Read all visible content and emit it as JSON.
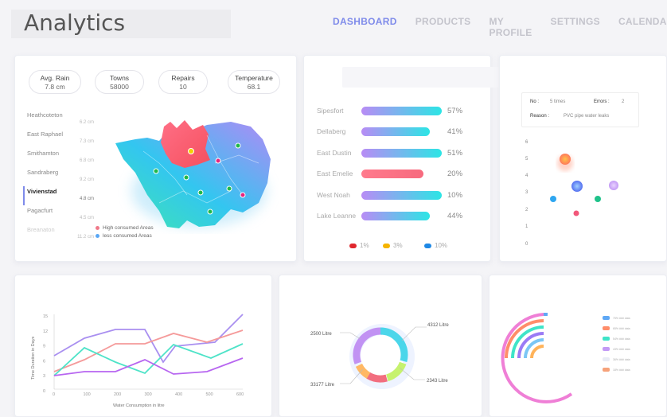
{
  "header": {
    "title": "Analytics",
    "nav": [
      {
        "label": "DASHBOARD",
        "active": true
      },
      {
        "label": "PRODUCTS",
        "active": false
      },
      {
        "label": "MY PROFILE",
        "active": false
      },
      {
        "label": "SETTINGS",
        "active": false
      },
      {
        "label": "CALENDAR",
        "active": false
      }
    ]
  },
  "stats": [
    {
      "label": "Avg. Rain",
      "value": "7.8 cm"
    },
    {
      "label": "Towns",
      "value": "58000"
    },
    {
      "label": "Repairs",
      "value": "10"
    },
    {
      "label": "Temperature",
      "value": "68.1"
    }
  ],
  "places": [
    {
      "name": "Heathcoteton",
      "value": "6.2 cm"
    },
    {
      "name": "East Raphael",
      "value": "7.3 cm"
    },
    {
      "name": "Smithamton",
      "value": "6.8 cm"
    },
    {
      "name": "Sandraberg",
      "value": "9.2 cm"
    },
    {
      "name": "Vivienstad",
      "value": "4.8 cm"
    },
    {
      "name": "Pagacfurt",
      "value": "4.5 cm"
    },
    {
      "name": "Breanaton",
      "value": "11.2 cm"
    }
  ],
  "map_legend": {
    "high": "High consumed Areas",
    "low": "less consumed Areas",
    "high_color": "#f07a8a",
    "low_color": "#5aa7f5"
  },
  "bars": {
    "rows": [
      {
        "name": "Sipesfort",
        "pct": "57%",
        "value": 57
      },
      {
        "name": "Dellaberg",
        "pct": "41%",
        "value": 41
      },
      {
        "name": "East Dustin",
        "pct": "51%",
        "value": 51
      },
      {
        "name": "East Emelie",
        "pct": "20%",
        "value": 20
      },
      {
        "name": "West Noah",
        "pct": "10%",
        "value": 10
      },
      {
        "name": "Lake Leanne",
        "pct": "44%",
        "value": 44
      }
    ],
    "legend": [
      {
        "label": "1%",
        "color": "#e0282e"
      },
      {
        "label": "3%",
        "color": "#f5b400"
      },
      {
        "label": "10%",
        "color": "#1e88e5"
      }
    ]
  },
  "info": {
    "no_label": "No :",
    "no_value": "5 times",
    "errors_label": "Errors :",
    "errors_value": "2",
    "reason_label": "Reason :",
    "reason_value": "PVC pipe water leaks"
  },
  "bubble_axis": [
    "6",
    "5",
    "4",
    "3",
    "2",
    "1",
    "0"
  ],
  "line_chart": {
    "type": "line",
    "ylabel": "Time Duration in Days",
    "xlabel": "Water Consumption in litre",
    "y_ticks": [
      "15",
      "12",
      "9",
      "6",
      "3",
      "0"
    ],
    "x_ticks": [
      "0",
      "100",
      "200",
      "300",
      "400",
      "500",
      "600"
    ]
  },
  "donut": {
    "labels": [
      "2500 Litre",
      "4312 Litre",
      "33177 Litre",
      "2343 Litre"
    ]
  },
  "arcs_legend": [
    "75% ### data",
    "65% ### data",
    "54% ### data",
    "43% ### data",
    "36% ### data",
    "18% ### data"
  ]
}
